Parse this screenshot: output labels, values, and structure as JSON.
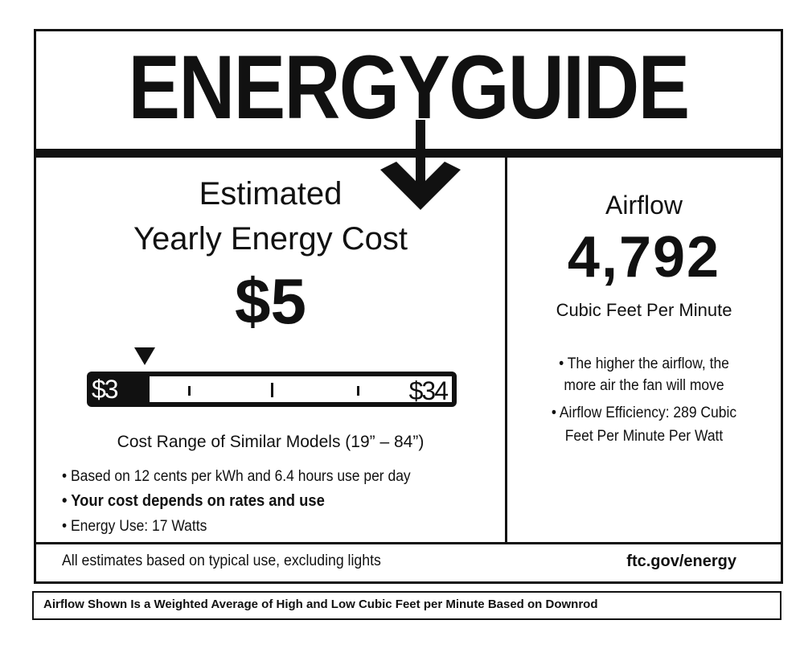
{
  "title": "ENERGYGUIDE",
  "cost": {
    "heading_line1": "Estimated",
    "heading_line2": "Yearly Energy Cost",
    "value": "$5",
    "range_low": "$3",
    "range_high": "$34",
    "range_caption": "Cost Range of Similar Models (19” – 84”)",
    "marker_value": 5
  },
  "bullets": [
    "• Based on 12 cents per kWh and 6.4 hours use per day",
    "• Your cost depends on rates and use",
    "• Energy Use: 17 Watts"
  ],
  "airflow": {
    "heading": "Airflow",
    "value": "4,792",
    "unit": "Cubic Feet Per Minute",
    "notes": [
      "• The higher the airflow, the",
      "more air the fan will move",
      "• Airflow Efficiency: 289 Cubic",
      "Feet Per Minute Per Watt"
    ]
  },
  "footer": {
    "disclaimer": "All estimates based on typical use, excluding lights",
    "url": "ftc.gov/energy"
  },
  "note": "Airflow Shown Is a Weighted Average of High and Low Cubic Feet per Minute Based on Downrod"
}
